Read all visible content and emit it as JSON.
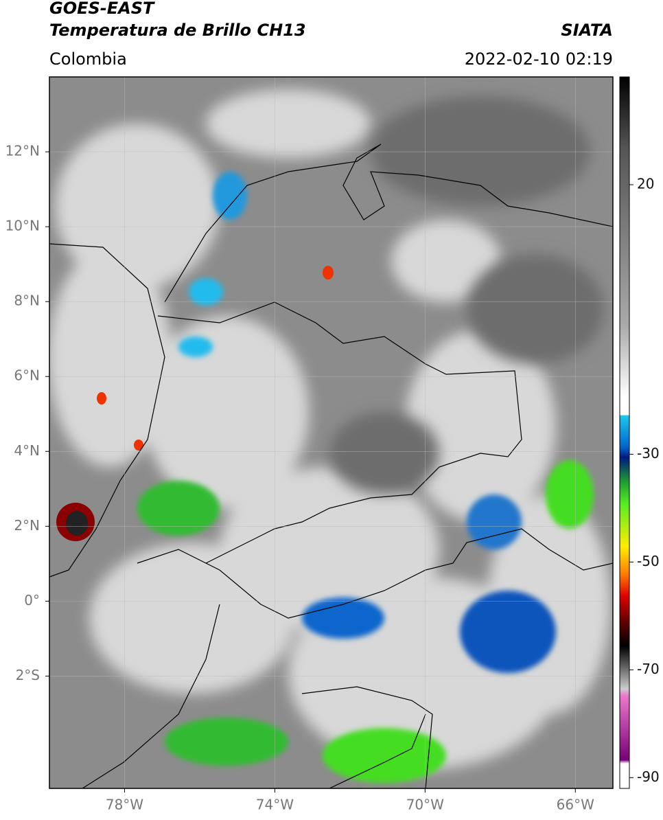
{
  "header": {
    "title": "GOES-EAST",
    "subtitle": "Temperatura de Brillo CH13",
    "source": "SIATA",
    "region": "Colombia",
    "datetime": "2022-02-10 02:19"
  },
  "map": {
    "xlim": [
      -80,
      -65
    ],
    "ylim": [
      -5,
      14
    ],
    "xticks": [
      {
        "value": -78,
        "label": "78°W"
      },
      {
        "value": -74,
        "label": "74°W"
      },
      {
        "value": -70,
        "label": "70°W"
      },
      {
        "value": -66,
        "label": "66°W"
      }
    ],
    "yticks": [
      {
        "value": -2,
        "label": "2°S"
      },
      {
        "value": 0,
        "label": "0°"
      },
      {
        "value": 2,
        "label": "2°N"
      },
      {
        "value": 4,
        "label": "4°N"
      },
      {
        "value": 6,
        "label": "6°N"
      },
      {
        "value": 8,
        "label": "8°N"
      },
      {
        "value": 10,
        "label": "10°N"
      },
      {
        "value": 12,
        "label": "12°N"
      }
    ]
  },
  "colorbar": {
    "lim": [
      -92,
      40
    ],
    "ticks": [
      20,
      -30,
      -50,
      -70,
      -90
    ]
  }
}
